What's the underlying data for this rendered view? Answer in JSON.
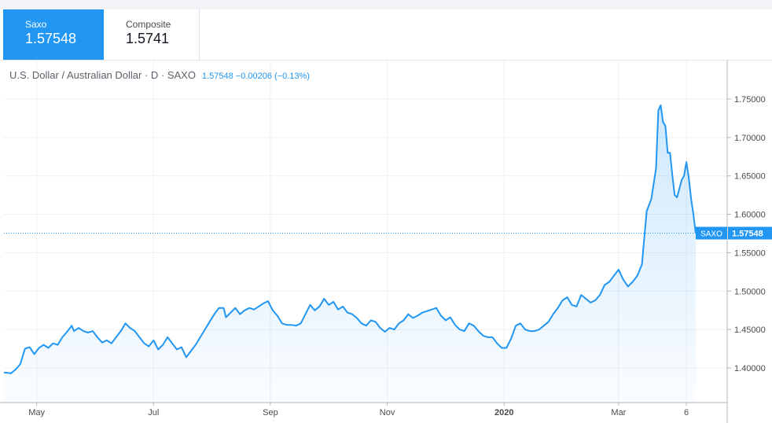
{
  "tabs": [
    {
      "label": "Saxo",
      "value": "1.57548",
      "active": true
    },
    {
      "label": "Composite",
      "value": "1.5741",
      "active": false
    }
  ],
  "legend": {
    "symbol_text": "U.S. Dollar / Australian Dollar · D · SAXO",
    "values_text": "1.57548 −0.00206 (−0.13%)"
  },
  "price_label": {
    "name": "SAXO",
    "value": "1.57548"
  },
  "colors": {
    "accent": "#2196f3",
    "line": "#2196f3",
    "grid": "#eef0f3",
    "axis_text": "#4a4a4a"
  },
  "chart_data": {
    "type": "area",
    "title": "U.S. Dollar / Australian Dollar · D · SAXO",
    "xlabel": "",
    "ylabel": "",
    "x_ticks": [
      {
        "label": "May",
        "t": 14
      },
      {
        "label": "Jul",
        "t": 64
      },
      {
        "label": "Sep",
        "t": 114
      },
      {
        "label": "Nov",
        "t": 164
      },
      {
        "label": "2020",
        "t": 214
      },
      {
        "label": "Mar",
        "t": 263
      },
      {
        "label": "6",
        "t": 292
      }
    ],
    "y_ticks": [
      "1.75000",
      "1.70000",
      "1.65000",
      "1.60000",
      "1.55000",
      "1.50000",
      "1.45000",
      "1.40000"
    ],
    "ylim": [
      1.38,
      1.79
    ],
    "grid": true,
    "last_value": 1.57548,
    "series": [
      {
        "values": [
          [
            0,
            1.394
          ],
          [
            3,
            1.393
          ],
          [
            5,
            1.398
          ],
          [
            7,
            1.405
          ],
          [
            9,
            1.425
          ],
          [
            11,
            1.427
          ],
          [
            13,
            1.418
          ],
          [
            15,
            1.426
          ],
          [
            17,
            1.43
          ],
          [
            19,
            1.426
          ],
          [
            21,
            1.432
          ],
          [
            23,
            1.43
          ],
          [
            25,
            1.44
          ],
          [
            27,
            1.447
          ],
          [
            29,
            1.455
          ],
          [
            30,
            1.448
          ],
          [
            32,
            1.452
          ],
          [
            34,
            1.448
          ],
          [
            36,
            1.446
          ],
          [
            38,
            1.448
          ],
          [
            40,
            1.44
          ],
          [
            42,
            1.433
          ],
          [
            44,
            1.436
          ],
          [
            46,
            1.432
          ],
          [
            48,
            1.44
          ],
          [
            50,
            1.448
          ],
          [
            52,
            1.458
          ],
          [
            54,
            1.452
          ],
          [
            56,
            1.448
          ],
          [
            58,
            1.44
          ],
          [
            60,
            1.432
          ],
          [
            62,
            1.428
          ],
          [
            64,
            1.436
          ],
          [
            66,
            1.424
          ],
          [
            68,
            1.43
          ],
          [
            70,
            1.44
          ],
          [
            72,
            1.432
          ],
          [
            74,
            1.424
          ],
          [
            76,
            1.427
          ],
          [
            78,
            1.414
          ],
          [
            80,
            1.422
          ],
          [
            82,
            1.43
          ],
          [
            84,
            1.44
          ],
          [
            86,
            1.45
          ],
          [
            88,
            1.46
          ],
          [
            90,
            1.47
          ],
          [
            92,
            1.478
          ],
          [
            94,
            1.478
          ],
          [
            95,
            1.466
          ],
          [
            97,
            1.472
          ],
          [
            99,
            1.478
          ],
          [
            101,
            1.47
          ],
          [
            103,
            1.475
          ],
          [
            105,
            1.478
          ],
          [
            107,
            1.476
          ],
          [
            109,
            1.48
          ],
          [
            111,
            1.484
          ],
          [
            113,
            1.487
          ],
          [
            115,
            1.475
          ],
          [
            117,
            1.468
          ],
          [
            119,
            1.458
          ],
          [
            121,
            1.456
          ],
          [
            123,
            1.456
          ],
          [
            125,
            1.455
          ],
          [
            127,
            1.458
          ],
          [
            129,
            1.47
          ],
          [
            131,
            1.482
          ],
          [
            133,
            1.475
          ],
          [
            135,
            1.48
          ],
          [
            137,
            1.49
          ],
          [
            139,
            1.482
          ],
          [
            141,
            1.486
          ],
          [
            143,
            1.476
          ],
          [
            145,
            1.48
          ],
          [
            147,
            1.472
          ],
          [
            149,
            1.47
          ],
          [
            151,
            1.465
          ],
          [
            153,
            1.458
          ],
          [
            155,
            1.455
          ],
          [
            157,
            1.462
          ],
          [
            159,
            1.46
          ],
          [
            161,
            1.452
          ],
          [
            163,
            1.447
          ],
          [
            165,
            1.452
          ],
          [
            167,
            1.45
          ],
          [
            169,
            1.458
          ],
          [
            171,
            1.462
          ],
          [
            173,
            1.47
          ],
          [
            175,
            1.465
          ],
          [
            177,
            1.468
          ],
          [
            179,
            1.472
          ],
          [
            181,
            1.474
          ],
          [
            183,
            1.476
          ],
          [
            185,
            1.478
          ],
          [
            187,
            1.468
          ],
          [
            189,
            1.462
          ],
          [
            191,
            1.466
          ],
          [
            193,
            1.456
          ],
          [
            195,
            1.45
          ],
          [
            197,
            1.448
          ],
          [
            199,
            1.458
          ],
          [
            201,
            1.455
          ],
          [
            203,
            1.448
          ],
          [
            205,
            1.442
          ],
          [
            207,
            1.44
          ],
          [
            209,
            1.44
          ],
          [
            211,
            1.432
          ],
          [
            213,
            1.426
          ],
          [
            215,
            1.426
          ],
          [
            217,
            1.438
          ],
          [
            219,
            1.455
          ],
          [
            221,
            1.458
          ],
          [
            223,
            1.45
          ],
          [
            225,
            1.448
          ],
          [
            227,
            1.448
          ],
          [
            229,
            1.45
          ],
          [
            231,
            1.455
          ],
          [
            233,
            1.46
          ],
          [
            235,
            1.47
          ],
          [
            237,
            1.478
          ],
          [
            239,
            1.488
          ],
          [
            241,
            1.492
          ],
          [
            243,
            1.482
          ],
          [
            245,
            1.48
          ],
          [
            247,
            1.495
          ],
          [
            249,
            1.49
          ],
          [
            251,
            1.485
          ],
          [
            253,
            1.488
          ],
          [
            255,
            1.495
          ],
          [
            257,
            1.508
          ],
          [
            259,
            1.512
          ],
          [
            261,
            1.52
          ],
          [
            263,
            1.528
          ],
          [
            265,
            1.515
          ],
          [
            267,
            1.506
          ],
          [
            269,
            1.512
          ],
          [
            271,
            1.52
          ],
          [
            273,
            1.535
          ],
          [
            274,
            1.57
          ],
          [
            275,
            1.604
          ],
          [
            277,
            1.62
          ],
          [
            279,
            1.66
          ],
          [
            280,
            1.735
          ],
          [
            281,
            1.742
          ],
          [
            282,
            1.72
          ],
          [
            283,
            1.715
          ],
          [
            284,
            1.68
          ],
          [
            285,
            1.68
          ],
          [
            286,
            1.65
          ],
          [
            287,
            1.625
          ],
          [
            288,
            1.622
          ],
          [
            290,
            1.645
          ],
          [
            291,
            1.65
          ],
          [
            292,
            1.668
          ],
          [
            293,
            1.648
          ],
          [
            294,
            1.62
          ],
          [
            295,
            1.6
          ],
          [
            296,
            1.575
          ]
        ]
      }
    ]
  }
}
